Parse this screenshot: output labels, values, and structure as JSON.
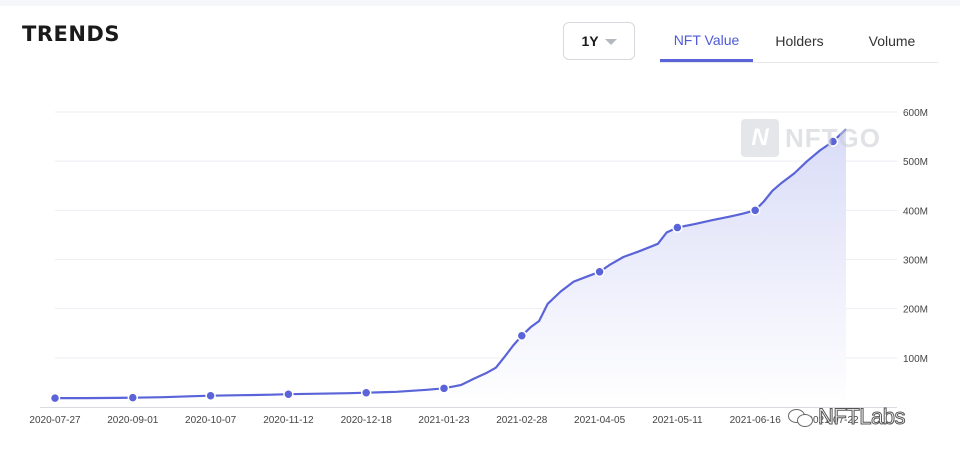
{
  "header": {
    "title": "TRENDS",
    "range": "1Y",
    "tabs": [
      {
        "label": "NFT Value",
        "active": true
      },
      {
        "label": "Holders",
        "active": false
      },
      {
        "label": "Volume",
        "active": false
      }
    ]
  },
  "watermark": {
    "logo_letter": "N",
    "text": "NFTGO"
  },
  "footer_mark": {
    "icon": "wechat-icon",
    "text": "NFTLabs"
  },
  "colors": {
    "accent": "#5a64d8",
    "area_top": "#d9dcf7",
    "area_bottom": "#ffffff",
    "grid": "#eceef2"
  },
  "chart_data": {
    "type": "area",
    "title": "",
    "xlabel": "",
    "ylabel": "",
    "x_ticks": [
      "2020-07-27",
      "2020-09-01",
      "2020-10-07",
      "2020-11-12",
      "2020-12-18",
      "2021-01-23",
      "2021-02-28",
      "2021-04-05",
      "2021-05-11",
      "2021-06-16",
      "2021-07-22"
    ],
    "y_ticks": [
      "100M",
      "200M",
      "300M",
      "400M",
      "500M",
      "600M"
    ],
    "ylim": [
      0,
      600
    ],
    "y_unit": "M",
    "grid": true,
    "series": [
      {
        "values": [
          [
            "2020-07-27",
            18
          ],
          [
            "2020-08-10",
            18
          ],
          [
            "2020-08-24",
            18.5
          ],
          [
            "2020-09-01",
            19
          ],
          [
            "2020-09-15",
            20
          ],
          [
            "2020-09-29",
            22
          ],
          [
            "2020-10-07",
            23
          ],
          [
            "2020-10-21",
            24
          ],
          [
            "2020-11-04",
            25
          ],
          [
            "2020-11-12",
            26
          ],
          [
            "2020-11-26",
            27
          ],
          [
            "2020-12-10",
            28
          ],
          [
            "2020-12-18",
            29
          ],
          [
            "2021-01-01",
            31
          ],
          [
            "2021-01-15",
            35
          ],
          [
            "2021-01-23",
            38
          ],
          [
            "2021-01-31",
            45
          ],
          [
            "2021-02-06",
            58
          ],
          [
            "2021-02-12",
            70
          ],
          [
            "2021-02-16",
            80
          ],
          [
            "2021-02-20",
            102
          ],
          [
            "2021-02-24",
            125
          ],
          [
            "2021-02-28",
            145
          ],
          [
            "2021-03-04",
            162
          ],
          [
            "2021-03-08",
            175
          ],
          [
            "2021-03-12",
            210
          ],
          [
            "2021-03-18",
            235
          ],
          [
            "2021-03-24",
            255
          ],
          [
            "2021-03-30",
            265
          ],
          [
            "2021-04-05",
            275
          ],
          [
            "2021-04-10",
            290
          ],
          [
            "2021-04-16",
            305
          ],
          [
            "2021-04-24",
            318
          ],
          [
            "2021-05-02",
            332
          ],
          [
            "2021-05-06",
            355
          ],
          [
            "2021-05-11",
            365
          ],
          [
            "2021-05-19",
            372
          ],
          [
            "2021-05-27",
            380
          ],
          [
            "2021-06-04",
            387
          ],
          [
            "2021-06-10",
            393
          ],
          [
            "2021-06-16",
            400
          ],
          [
            "2021-06-20",
            418
          ],
          [
            "2021-06-24",
            440
          ],
          [
            "2021-06-28",
            455
          ],
          [
            "2021-07-04",
            475
          ],
          [
            "2021-07-10",
            500
          ],
          [
            "2021-07-16",
            522
          ],
          [
            "2021-07-22",
            540
          ],
          [
            "2021-07-28",
            565
          ]
        ],
        "markers": [
          "2020-07-27",
          "2020-09-01",
          "2020-10-07",
          "2020-11-12",
          "2020-12-18",
          "2021-01-23",
          "2021-02-28",
          "2021-04-05",
          "2021-05-11",
          "2021-06-16",
          "2021-07-22"
        ]
      }
    ]
  }
}
